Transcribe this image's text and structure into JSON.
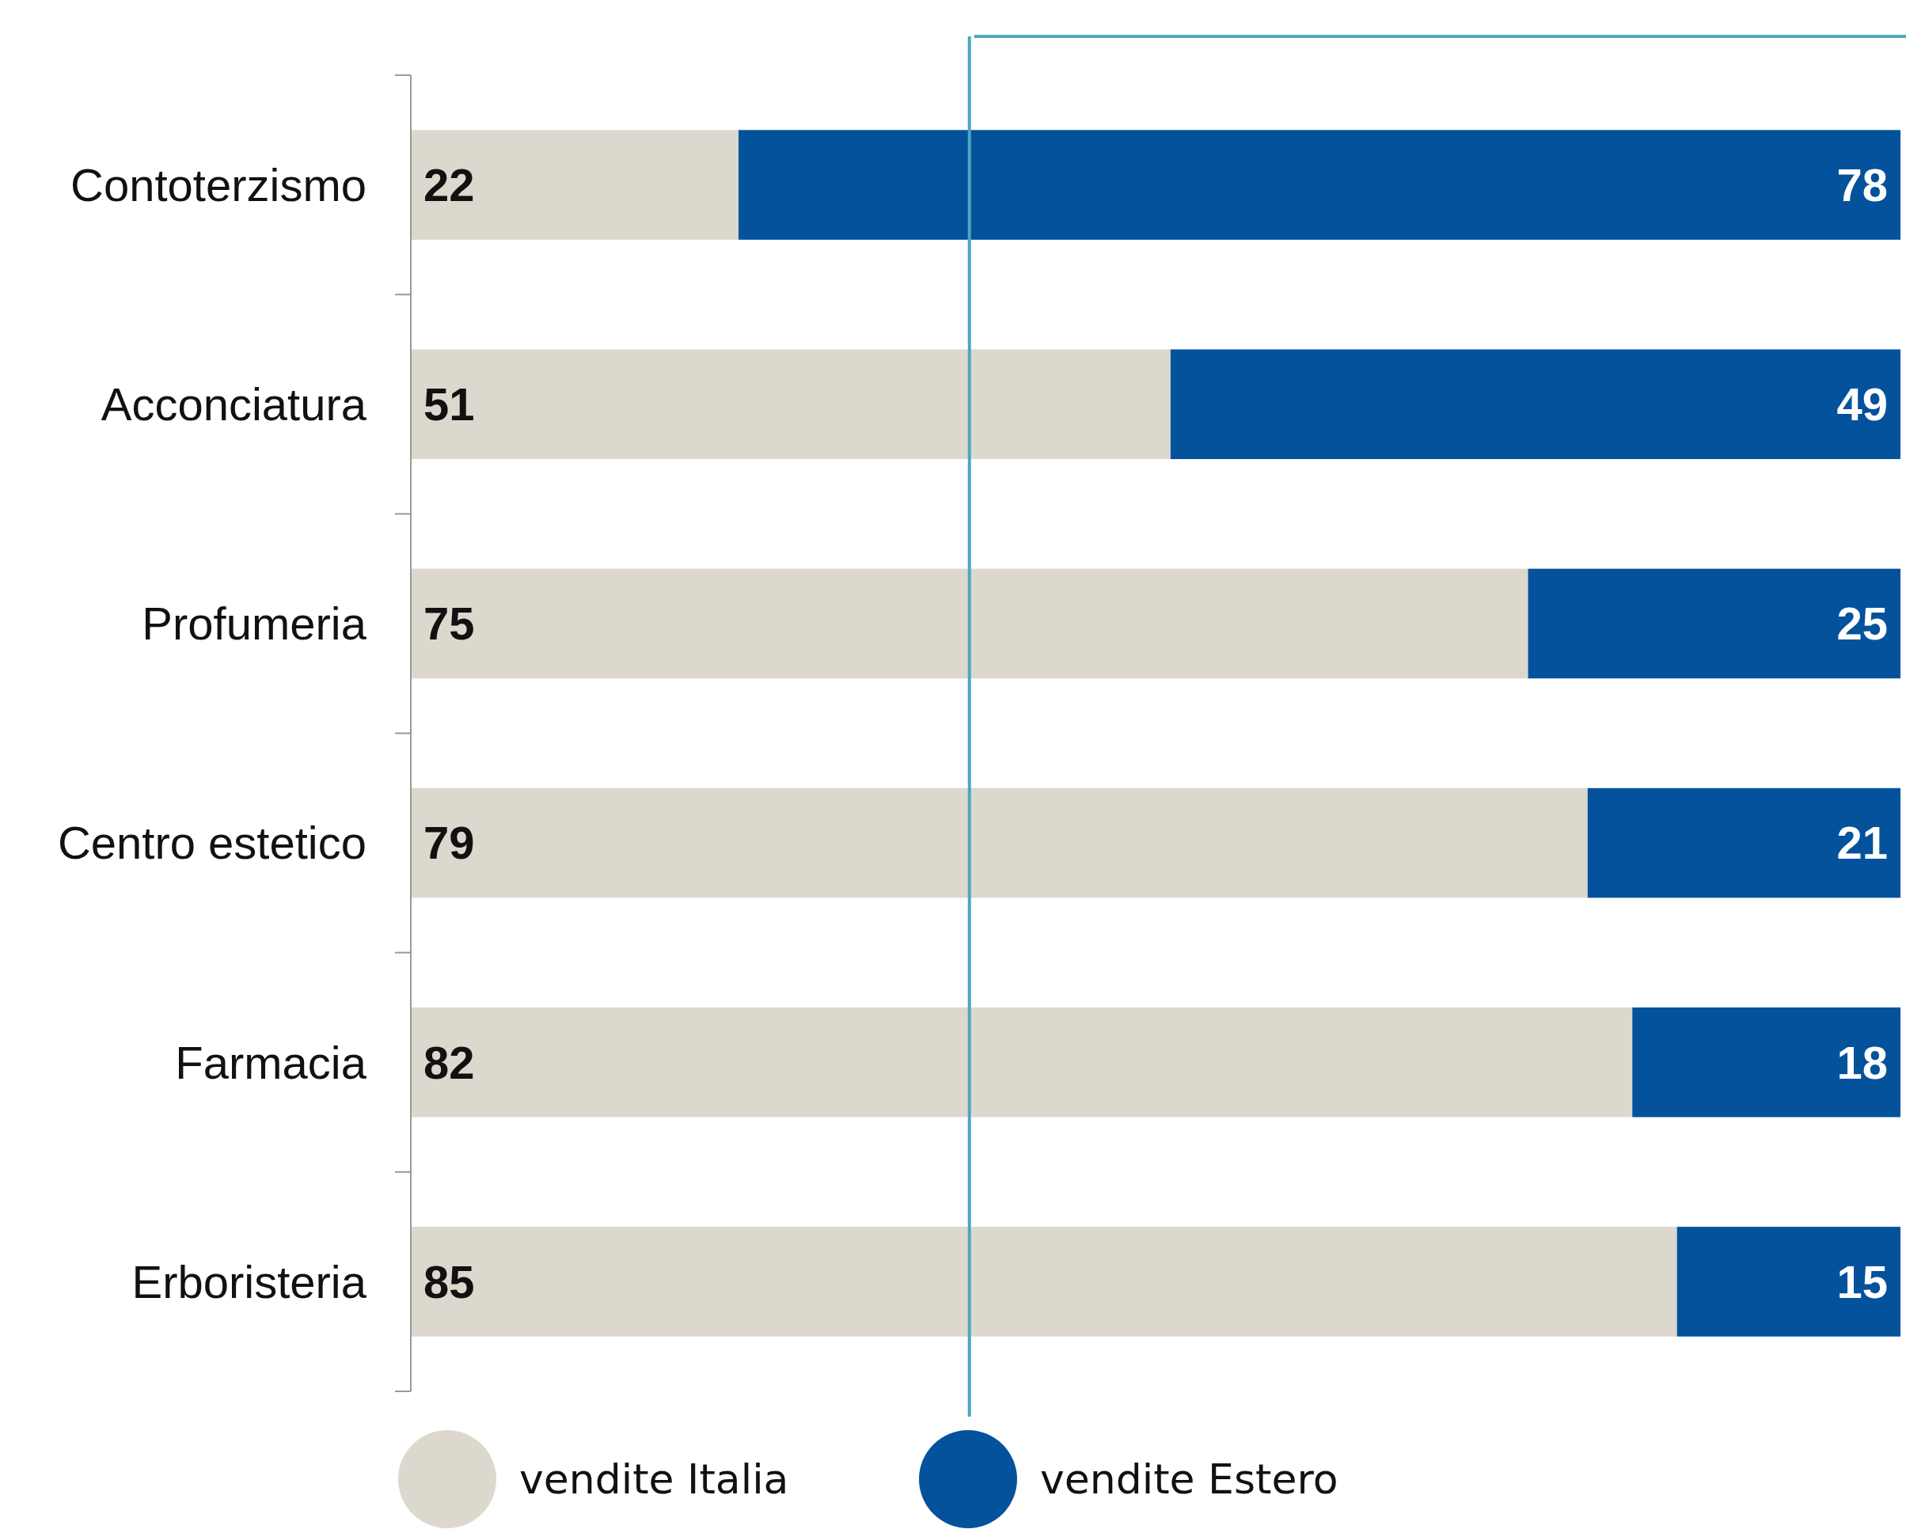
{
  "chart_data": {
    "type": "bar",
    "orientation": "horizontal",
    "stacked": true,
    "categories": [
      "Contoterzismo",
      "Acconciatura",
      "Profumeria",
      "Centro estetico",
      "Farmacia",
      "Erboristeria"
    ],
    "series": [
      {
        "name": "vendite Italia",
        "color": "#dcd8ce",
        "values": [
          22,
          51,
          75,
          79,
          82,
          85
        ]
      },
      {
        "name": "vendite Estero",
        "color": "#04529c",
        "values": [
          78,
          49,
          25,
          21,
          18,
          15
        ]
      }
    ],
    "xlim": [
      0,
      100
    ],
    "tick_labels": "y",
    "data_labels": true,
    "legend": "bottom",
    "ref_lines": [
      {
        "axis": "x",
        "value": 37.5,
        "color": "#4aa8c0"
      }
    ]
  }
}
